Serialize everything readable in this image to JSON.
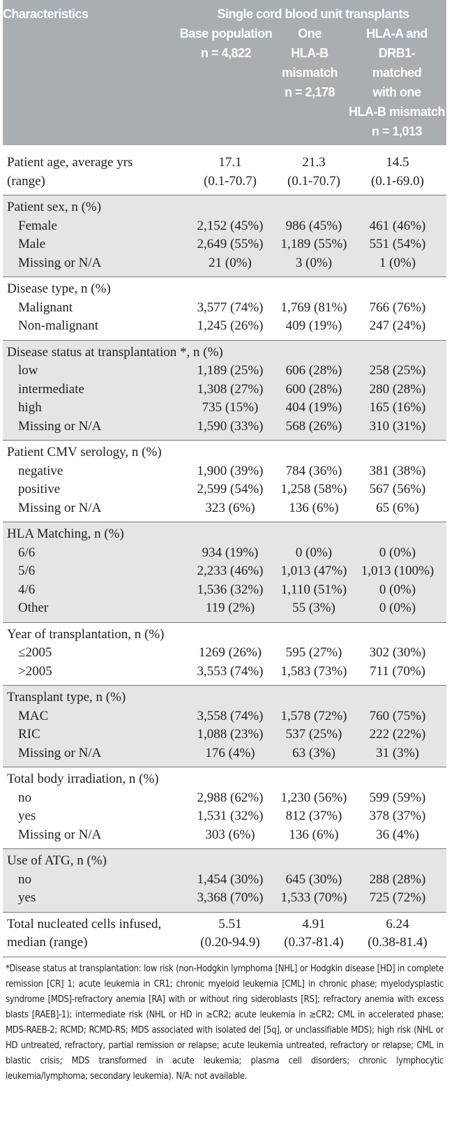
{
  "header": {
    "title": "Characteristics",
    "group": "Single cord blood unit transplants",
    "columns": [
      [
        "Base population",
        "n = 4,822"
      ],
      [
        "One",
        "HLA-B",
        "mismatch",
        "n = 2,178"
      ],
      [
        "HLA-A and",
        "DRB1-",
        "matched",
        "with one",
        "HLA-B mismatch",
        "n = 1,013"
      ]
    ]
  },
  "sections": [
    {
      "rows": [
        [
          "Patient age, average yrs",
          "17.1",
          "21.3",
          "14.5"
        ],
        [
          "(range)",
          "(0.1-70.7)",
          "(0.1-70.7)",
          "(0.1-69.0)"
        ]
      ]
    },
    {
      "title": "Patient sex, n (%)",
      "rows": [
        [
          "Female",
          "2,152 (45%)",
          "986 (45%)",
          "461 (46%)"
        ],
        [
          "Male",
          "2,649 (55%)",
          "1,189 (55%)",
          "551 (54%)"
        ],
        [
          "Missing or N/A",
          "21 (0%)",
          "3 (0%)",
          "1 (0%)"
        ]
      ]
    },
    {
      "title": "Disease type, n (%)",
      "rows": [
        [
          "Malignant",
          "3,577 (74%)",
          "1,769 (81%)",
          "766 (76%)"
        ],
        [
          "Non-malignant",
          "1,245 (26%)",
          "409 (19%)",
          "247 (24%)"
        ]
      ]
    },
    {
      "title": "Disease status at transplantation *, n (%)",
      "rows": [
        [
          "low",
          "1,189 (25%)",
          "606 (28%)",
          "258 (25%)"
        ],
        [
          "intermediate",
          "1,308 (27%)",
          "600 (28%)",
          "280 (28%)"
        ],
        [
          "high",
          "735 (15%)",
          "404 (19%)",
          "165 (16%)"
        ],
        [
          "Missing or N/A",
          "1,590 (33%)",
          "568 (26%)",
          "310 (31%)"
        ]
      ]
    },
    {
      "title": "Patient CMV serology, n (%)",
      "rows": [
        [
          "negative",
          "1,900 (39%)",
          "784 (36%)",
          "381 (38%)"
        ],
        [
          "positive",
          "2,599 (54%)",
          "1,258 (58%)",
          "567 (56%)"
        ],
        [
          "Missing or N/A",
          "323 (6%)",
          "136 (6%)",
          "65 (6%)"
        ]
      ]
    },
    {
      "title": "HLA Matching, n (%)",
      "rows": [
        [
          "6/6",
          "934 (19%)",
          "0 (0%)",
          "0 (0%)"
        ],
        [
          "5/6",
          "2,233 (46%)",
          "1,013 (47%)",
          "1,013 (100%)"
        ],
        [
          "4/6",
          "1,536 (32%)",
          "1,110 (51%)",
          "0 (0%)"
        ],
        [
          "Other",
          "119 (2%)",
          "55 (3%)",
          "0 (0%)"
        ]
      ]
    },
    {
      "title": "Year of transplantation, n (%)",
      "rows": [
        [
          "≤2005",
          "1269 (26%)",
          "595 (27%)",
          "302 (30%)"
        ],
        [
          ">2005",
          "3,553 (74%)",
          "1,583 (73%)",
          "711 (70%)"
        ]
      ]
    },
    {
      "title": "Transplant type, n (%)",
      "rows": [
        [
          "MAC",
          "3,558 (74%)",
          "1,578 (72%)",
          "760 (75%)"
        ],
        [
          "RIC",
          "1,088 (23%)",
          "537 (25%)",
          "222 (22%)"
        ],
        [
          "Missing or N/A",
          "176 (4%)",
          "63 (3%)",
          "31 (3%)"
        ]
      ]
    },
    {
      "title": "Total body irradiation, n (%)",
      "rows": [
        [
          "no",
          "2,988 (62%)",
          "1,230 (56%)",
          "599 (59%)"
        ],
        [
          "yes",
          "1,531 (32%)",
          "812 (37%)",
          "378 (37%)"
        ],
        [
          "Missing or N/A",
          "303 (6%)",
          "136 (6%)",
          "36 (4%)"
        ]
      ]
    },
    {
      "title": "Use of ATG, n (%)",
      "rows": [
        [
          "no",
          "1,454 (30%)",
          "645 (30%)",
          "288 (28%)"
        ],
        [
          "yes",
          "3,368 (70%)",
          "1,533 (70%)",
          "725 (72%)"
        ]
      ]
    },
    {
      "rows": [
        [
          "Total nucleated cells infused,",
          "5.51",
          "4.91",
          "6.24"
        ],
        [
          "median (range)",
          "(0.20-94.9)",
          "(0.37-81.4)",
          "(0.38-81.4)"
        ]
      ]
    }
  ],
  "footnote": "*Disease status at transplantation: low risk (non-Hodgkin lymphoma [NHL] or Hodgkin disease [HD] in complete remission [CR] 1; acute leukemia in CR1; chronic myeloid leukemia [CML] in chronic phase; myelodysplastic syndrome [MDS]-refractory anemia [RA] with or without ring sideroblasts [RS]; refractory anemia with excess blasts [RAEB]-1); intermediate risk (NHL or HD in ≥CR2; acute leukemia in ≥CR2; CML in accelerated phase; MDS-RAEB-2; RCMD; RCMD-RS; MDS associated with isolated del [5q], or unclassifiable MDS); high risk (NHL or HD untreated, refractory, partial remission or relapse; acute leukemia untreated, refractory or relapse; CML in blastic crisis; MDS transformed in acute leukemia; plasma cell disorders; chronic lymphocytic leukemia/lymphoma; secondary leukemia). N/A: not available."
}
